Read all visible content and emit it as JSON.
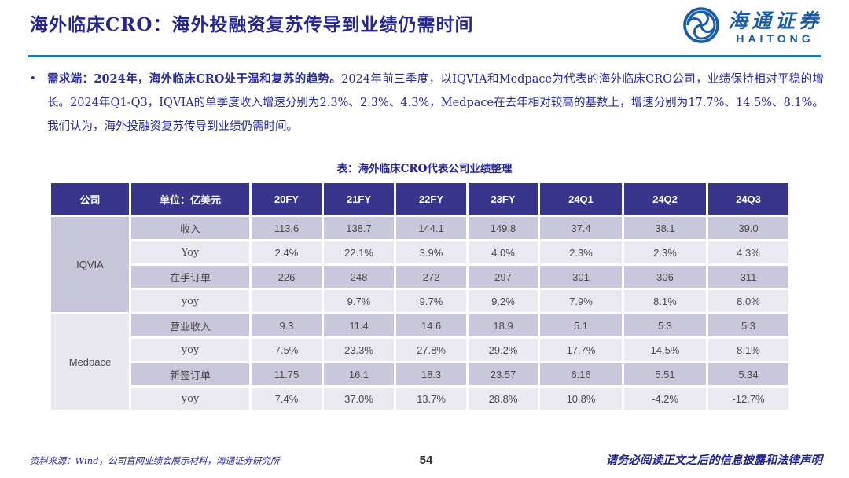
{
  "header": {
    "title": "海外临床CRO：海外投融资复苏传导到业绩仍需时间",
    "logo": {
      "cn": "海通证券",
      "en": "HAITONG"
    }
  },
  "bullet": {
    "marker": "•",
    "lead": "需求端：2024年，海外临床CRO处于温和复苏的趋势。",
    "body": "2024年前三季度，以IQVIA和Medpace为代表的海外临床CRO公司，业绩保持相对平稳的增长。2024年Q1-Q3，IQVIA的单季度收入增速分别为2.3%、2.3%、4.3%，Medpace在去年相对较高的基数上，增速分别为17.7%、14.5%、8.1%。我们认为，海外投融资复苏传导到业绩仍需时间。"
  },
  "table": {
    "caption": "表：海外临床CRO代表公司业绩整理",
    "headers": [
      "公司",
      "单位：亿美元",
      "20FY",
      "21FY",
      "22FY",
      "23FY",
      "24Q1",
      "24Q2",
      "24Q3"
    ],
    "groups": [
      {
        "company": "IQVIA",
        "rows": [
          {
            "metric": "收入",
            "values": [
              "113.6",
              "138.7",
              "144.1",
              "149.8",
              "37.4",
              "38.1",
              "39.0"
            ]
          },
          {
            "metric": "Yoy",
            "values": [
              "2.4%",
              "22.1%",
              "3.9%",
              "4.0%",
              "2.3%",
              "2.3%",
              "4.3%"
            ]
          },
          {
            "metric": "在手订单",
            "values": [
              "226",
              "248",
              "272",
              "297",
              "301",
              "306",
              "311"
            ]
          },
          {
            "metric": "yoy",
            "values": [
              "",
              "9.7%",
              "9.7%",
              "9.2%",
              "7.9%",
              "8.1%",
              "8.0%"
            ]
          }
        ]
      },
      {
        "company": "Medpace",
        "rows": [
          {
            "metric": "营业收入",
            "values": [
              "9.3",
              "11.4",
              "14.6",
              "18.9",
              "5.1",
              "5.3",
              "5.3"
            ]
          },
          {
            "metric": "yoy",
            "values": [
              "7.5%",
              "23.3%",
              "27.8%",
              "29.2%",
              "17.7%",
              "14.5%",
              "8.1%"
            ]
          },
          {
            "metric": "新签订单",
            "values": [
              "11.75",
              "16.1",
              "18.3",
              "23.57",
              "6.16",
              "5.51",
              "5.34"
            ]
          },
          {
            "metric": "yoy",
            "values": [
              "7.4%",
              "37.0%",
              "13.7%",
              "28.8%",
              "10.8%",
              "-4.2%",
              "-12.7%"
            ]
          }
        ]
      }
    ]
  },
  "footer": {
    "source": "资料来源：Wind，公司官网业绩会展示材料，海通证券研究所",
    "page": "54",
    "disclaimer": "请务必阅读正文之后的信息披露和法律声明"
  },
  "colors": {
    "accent_navy": "#26268e",
    "divider_blue": "#2273b8",
    "logo_blue": "#1a5ca8",
    "table_header_bg": "#39348c",
    "row_dark": "#c9c7db",
    "row_light": "#eae9f2",
    "cell_text": "#4a4a4a"
  }
}
